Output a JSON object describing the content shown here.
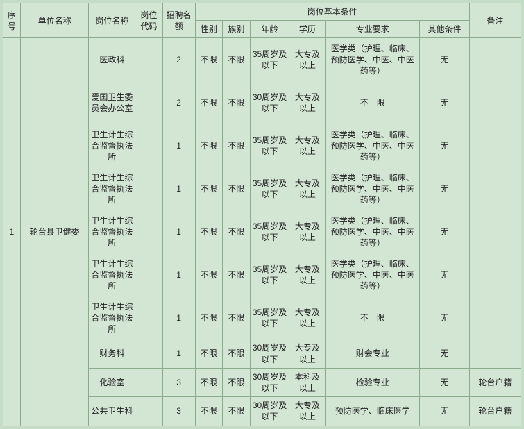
{
  "columns": {
    "seq": "序号",
    "unit": "单位名称",
    "pos": "岗位名称",
    "code": "岗位代码",
    "quota": "招聘名额",
    "cond_group": "岗位基本条件",
    "sex": "性别",
    "ethnic": "族别",
    "age": "年龄",
    "edu": "学历",
    "major": "专业要求",
    "other": "其他条件",
    "remark": "备注"
  },
  "seq_val": "1",
  "unit_val": "轮台县卫健委",
  "rows": [
    {
      "pos": "医政科",
      "code": "",
      "quota": "2",
      "sex": "不限",
      "eth": "不限",
      "age": "35周岁及以下",
      "edu": "大专及以上",
      "major": "医学类（护理、临床、预防医学、中医、中医药等）",
      "other": "无",
      "remark": ""
    },
    {
      "pos": "爱国卫生委员会办公室",
      "code": "",
      "quota": "2",
      "sex": "不限",
      "eth": "不限",
      "age": "30周岁及以下",
      "edu": "大专及以上",
      "major": "不　限",
      "other": "无",
      "remark": ""
    },
    {
      "pos": "卫生计生综合监督执法所",
      "code": "",
      "quota": "1",
      "sex": "不限",
      "eth": "不限",
      "age": "35周岁及以下",
      "edu": "大专及以上",
      "major": "医学类（护理、临床、预防医学、中医、中医药等）",
      "other": "无",
      "remark": ""
    },
    {
      "pos": "卫生计生综合监督执法所",
      "code": "",
      "quota": "1",
      "sex": "不限",
      "eth": "不限",
      "age": "35周岁及以下",
      "edu": "大专及以上",
      "major": "医学类（护理、临床、预防医学、中医、中医药等）",
      "other": "无",
      "remark": ""
    },
    {
      "pos": "卫生计生综合监督执法所",
      "code": "",
      "quota": "1",
      "sex": "不限",
      "eth": "不限",
      "age": "35周岁及以下",
      "edu": "大专及以上",
      "major": "医学类（护理、临床、预防医学、中医、中医药等）",
      "other": "无",
      "remark": ""
    },
    {
      "pos": "卫生计生综合监督执法所",
      "code": "",
      "quota": "1",
      "sex": "不限",
      "eth": "不限",
      "age": "35周岁及以下",
      "edu": "大专及以上",
      "major": "医学类（护理、临床、预防医学、中医、中医药等）",
      "other": "无",
      "remark": ""
    },
    {
      "pos": "卫生计生综合监督执法所",
      "code": "",
      "quota": "1",
      "sex": "不限",
      "eth": "不限",
      "age": "35周岁及以下",
      "edu": "大专及以上",
      "major": "不　限",
      "other": "无",
      "remark": ""
    },
    {
      "pos": "财务科",
      "code": "",
      "quota": "1",
      "sex": "不限",
      "eth": "不限",
      "age": "30周岁及以下",
      "edu": "大专及以上",
      "major": "财会专业",
      "other": "无",
      "remark": ""
    },
    {
      "pos": "化验室",
      "code": "",
      "quota": "3",
      "sex": "不限",
      "eth": "不限",
      "age": "30周岁及以下",
      "edu": "本科及以上",
      "major": "检验专业",
      "other": "无",
      "remark": "轮台户籍"
    },
    {
      "pos": "公共卫生科",
      "code": "",
      "quota": "3",
      "sex": "不限",
      "eth": "不限",
      "age": "30周岁及以下",
      "edu": "大专及以上",
      "major": "预防医学、临床医学",
      "other": "无",
      "remark": "轮台户籍"
    }
  ]
}
